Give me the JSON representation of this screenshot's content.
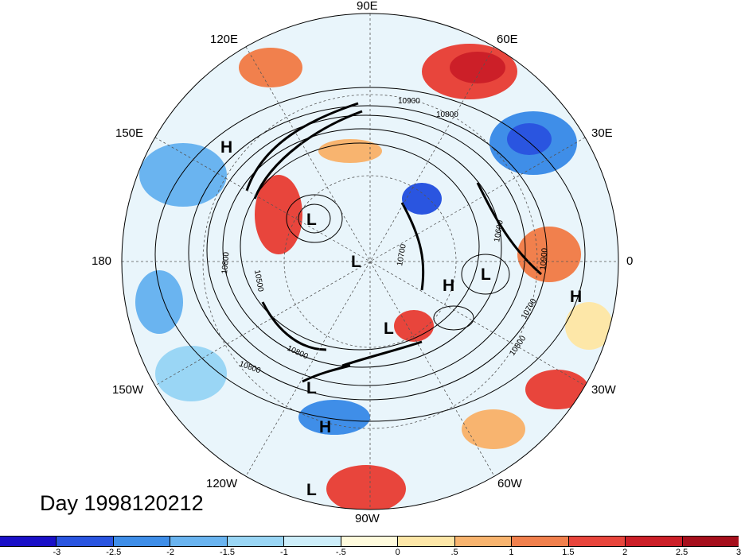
{
  "map": {
    "type": "polar-stereographic",
    "hemisphere": "northern",
    "date_label": "Day 1998120212",
    "longitude_labels": {
      "lon_90e": "90E",
      "lon_120e": "120E",
      "lon_60e": "60E",
      "lon_150e": "150E",
      "lon_30e": "30E",
      "lon_180": "180",
      "lon_0": "0",
      "lon_150w": "150W",
      "lon_30w": "30W",
      "lon_120w": "120W",
      "lon_60w": "60W",
      "lon_90w": "90W"
    },
    "contour_labels": [
      "10900",
      "10800",
      "10500",
      "10800",
      "10700",
      "10600",
      "10900",
      "10700",
      "10800",
      "10800",
      "10800"
    ],
    "pressure_centers": [
      {
        "label": "H"
      },
      {
        "label": "L"
      },
      {
        "label": "L"
      },
      {
        "label": "L"
      },
      {
        "label": "H"
      },
      {
        "label": "L"
      },
      {
        "label": "H"
      },
      {
        "label": "L"
      },
      {
        "label": "H"
      },
      {
        "label": "L"
      }
    ]
  },
  "colorbar": {
    "colors": [
      "#1a10c8",
      "#2a55e0",
      "#3f8ee8",
      "#6ab4f0",
      "#9ad6f5",
      "#cdeefa",
      "#fffbdd",
      "#fde7a8",
      "#f8b46f",
      "#f1804d",
      "#e8453c",
      "#cc1f28",
      "#a60f1c"
    ],
    "tick_labels": [
      "-3",
      "-2.5",
      "-2",
      "-1.5",
      "-1",
      "-.5",
      "0",
      ".5",
      "1",
      "1.5",
      "2",
      "2.5",
      "3"
    ]
  }
}
